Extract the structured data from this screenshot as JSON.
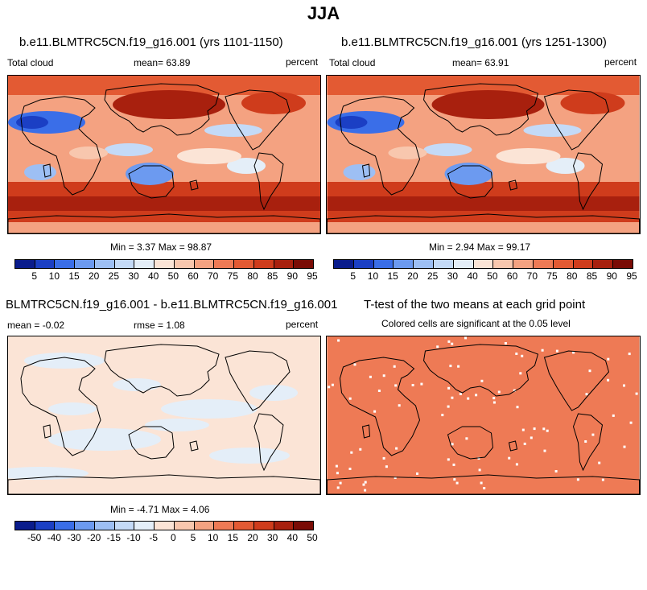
{
  "title": "JJA",
  "colormaps": {
    "abs": [
      "#0a1c8c",
      "#1b3fc4",
      "#3a6ee8",
      "#6c9af0",
      "#9dbff4",
      "#c4daf7",
      "#e4eef8",
      "#fbe4d6",
      "#f8c7ae",
      "#f4a281",
      "#ee7a55",
      "#e35a33",
      "#cf3c1c",
      "#a8200e",
      "#7a0b05"
    ],
    "diff": [
      "#0a1c8c",
      "#1b3fc4",
      "#3a6ee8",
      "#6c9af0",
      "#9dbff4",
      "#c4daf7",
      "#e4eef8",
      "#fbe4d6",
      "#f8c7ae",
      "#f4a281",
      "#ee7a55",
      "#e35a33",
      "#cf3c1c",
      "#a8200e",
      "#7a0b05"
    ]
  },
  "panels": {
    "p1": {
      "title": "b.e11.BLMTRC5CN.f19_g16.001 (yrs 1101-1150)",
      "left_label": "Total cloud",
      "mean_label": "mean=  63.89",
      "unit_label": "percent",
      "minmax_label": "Min =  3.37 Max =  98.87",
      "ticks": [
        "5",
        "10",
        "15",
        "20",
        "25",
        "30",
        "40",
        "50",
        "60",
        "70",
        "75",
        "80",
        "85",
        "90",
        "95"
      ]
    },
    "p2": {
      "title": "b.e11.BLMTRC5CN.f19_g16.001 (yrs 1251-1300)",
      "left_label": "Total cloud",
      "mean_label": "mean=  63.91",
      "unit_label": "percent",
      "minmax_label": "Min =  2.94 Max =  99.17",
      "ticks": [
        "5",
        "10",
        "15",
        "20",
        "25",
        "30",
        "40",
        "50",
        "60",
        "70",
        "75",
        "80",
        "85",
        "90",
        "95"
      ]
    },
    "p3": {
      "title": "BLMTRC5CN.f19_g16.001 - b.e11.BLMTRC5CN.f19_g16.001",
      "mean_label": "mean =  -0.02",
      "rmse_label": "rmse =   1.08",
      "unit_label": "percent",
      "minmax_label": "Min =  -4.71 Max =   4.06",
      "ticks": [
        "-50",
        "-40",
        "-30",
        "-20",
        "-15",
        "-10",
        "-5",
        "0",
        "5",
        "10",
        "15",
        "20",
        "30",
        "40",
        "50"
      ]
    },
    "p4": {
      "title": "T-test of the two means at each grid point",
      "subtitle": "Colored cells are significant at the 0.05 level",
      "fill_color": "#ee7a55"
    }
  }
}
